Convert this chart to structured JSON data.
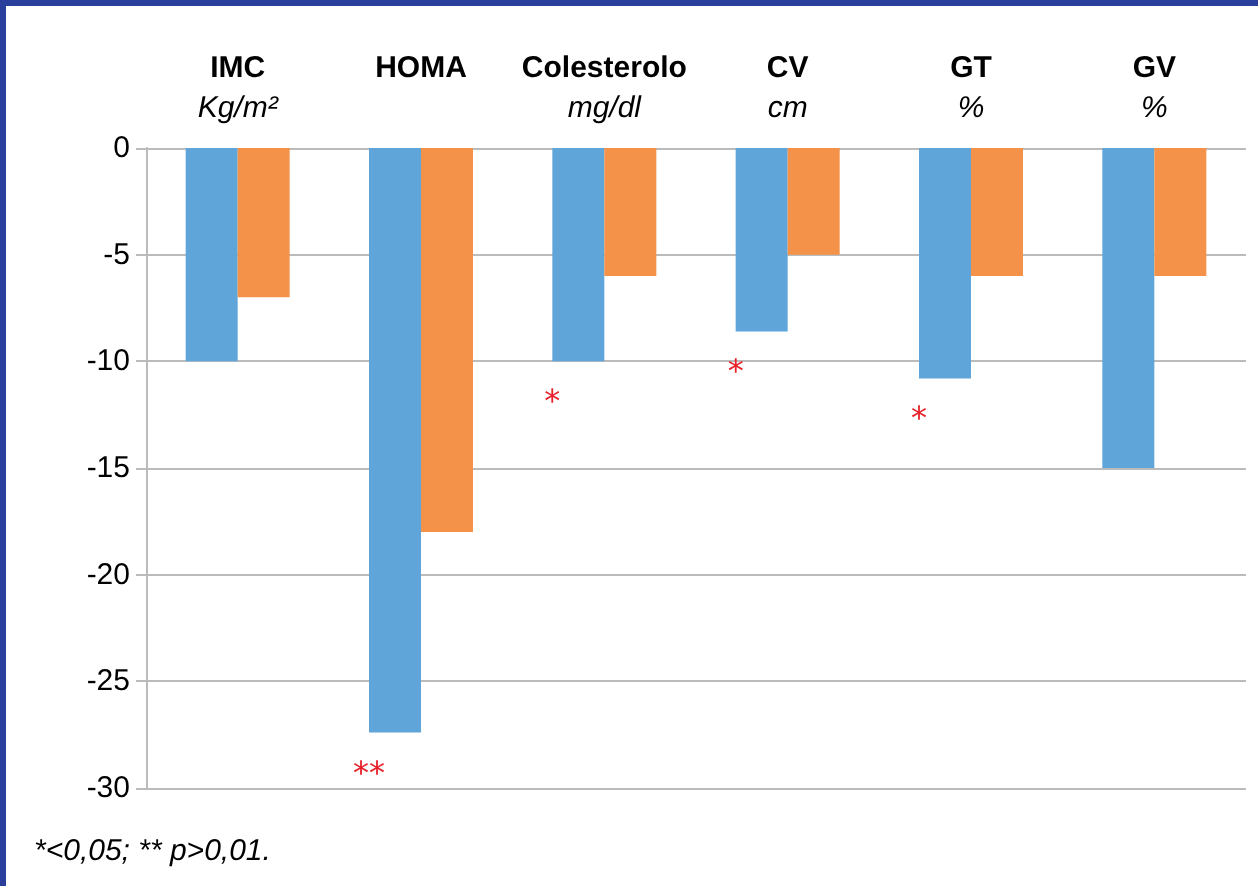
{
  "chart_data": {
    "type": "bar",
    "categories": [
      "IMC\nKg/m²",
      "HOMA",
      "Colesterolo\nmg/dl",
      "CV\ncm",
      "GT\n%",
      "GV\n%"
    ],
    "series": [
      {
        "color": "#5fa5d9",
        "values": [
          -10,
          -27.4,
          -10,
          -8.6,
          -10.8,
          -15
        ]
      },
      {
        "color": "#f39248",
        "values": [
          -7,
          -18,
          -6,
          -5,
          -6,
          -6
        ]
      }
    ],
    "ylim": [
      -30,
      0
    ],
    "yticks": [
      -30,
      -25,
      -20,
      -15,
      -10,
      -5,
      0
    ],
    "grid": "y",
    "annotations": [
      {
        "text": "**",
        "x": "HOMA",
        "y": -27.4
      },
      {
        "text": "*",
        "x": "Colesterolo\nmg/dl",
        "y": -10
      },
      {
        "text": "*",
        "x": "CV\ncm",
        "y": -8.6
      },
      {
        "text": "*",
        "x": "GT\n%",
        "y": -10.8
      },
      "*<0,05; ** p>0,01."
    ]
  }
}
